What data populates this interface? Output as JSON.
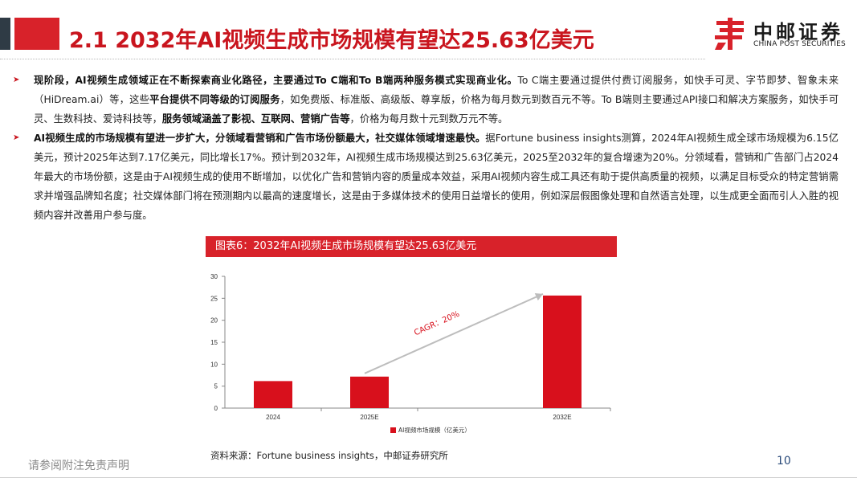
{
  "header": {
    "title": "2.1 2032年AI视频生成市场规模有望达25.63亿美元",
    "logo_cn": "中邮证券",
    "logo_en": "CHINA POST SECURITIES",
    "brand_color": "#d8222a"
  },
  "bullets": [
    {
      "segments": [
        {
          "text": "现阶段，AI视频生成领域正在不断探索商业化路径，主要通过To C端和To B端两种服务模式实现商业化。",
          "bold": true
        },
        {
          "text": "To C端主要通过提供付费订阅服务，如快手可灵、字节即梦、智象未来（HiDream.ai）等，这些",
          "bold": false
        },
        {
          "text": "平台提供不同等级的订阅服务",
          "bold": true
        },
        {
          "text": "，如免费版、标准版、高级版、尊享版，价格为每月数元到数百元不等。To B端则主要通过API接口和解决方案服务，如快手可灵、生数科技、爱诗科技等，",
          "bold": false
        },
        {
          "text": "服务领域涵盖了影视、互联网、营销广告等",
          "bold": true
        },
        {
          "text": "，价格为每月数十元到数万元不等。",
          "bold": false
        }
      ]
    },
    {
      "segments": [
        {
          "text": "AI视频生成的市场规模有望进一步扩大，分领域看营销和广告市场份额最大，社交媒体领域增速最快。",
          "bold": true
        },
        {
          "text": "据Fortune business insights测算，2024年AI视频生成全球市场规模为6.15亿美元，预计2025年达到7.17亿美元，同比增长17%。预计到2032年，AI视频生成市场规模达到25.63亿美元，2025至2032年的复合增速为20%。分领域看，营销和广告部门占2024年最大的市场份额，这是由于AI视频生成的使用不断增加，以优化广告和营销内容的质量成本效益，采用AI视频内容生成工具还有助于提供高质量的视频，以满足目标受众的特定营销需求并增强品牌知名度；社交媒体部门将在预测期内以最高的速度增长，这是由于多媒体技术的使用日益增长的使用，例如深层假图像处理和自然语言处理，以生成更全面而引人入胜的视频内容并改善用户参与度。",
          "bold": false
        }
      ]
    }
  ],
  "chart_header": "图表6：2032年AI视频生成市场规模有望达25.63亿美元",
  "chart_data": {
    "type": "bar",
    "categories": [
      "2024",
      "2025E",
      "2032E"
    ],
    "x_positions": [
      0,
      1,
      3
    ],
    "series": [
      {
        "name": "AI视频市场规模（亿美元）",
        "values": [
          6.15,
          7.17,
          25.63
        ],
        "color": "#d8101c"
      }
    ],
    "ylim": [
      0,
      30
    ],
    "yticks": [
      0,
      5,
      10,
      15,
      20,
      25,
      30
    ],
    "grid": false,
    "legend": "bottom-center",
    "annotation": "CAGR：20%"
  },
  "source": "资料来源：Fortune business insights，中邮证券研究所",
  "footer": {
    "disclaimer": "请参阅附注免责声明",
    "page_number": "10"
  }
}
